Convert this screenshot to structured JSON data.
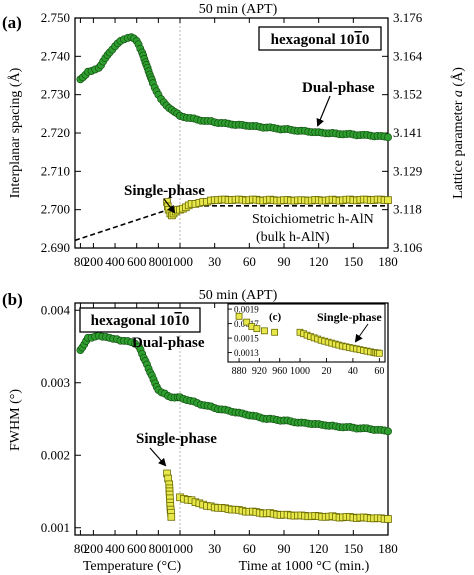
{
  "colors": {
    "green_fill": "#2e9e2e",
    "green_stroke": "#145214",
    "yellow_fill": "#e8e84a",
    "yellow_stroke": "#6b6b00",
    "axis": "#000000"
  },
  "chart_data": [
    {
      "type": "scatter",
      "panel_label": "(a)",
      "title_box": "hexagonal 10¯1¯0",
      "title_box_parts": [
        "hexagonal 10",
        "1",
        "0"
      ],
      "top_axis_label": "50 min (APT)",
      "ylabel": "Interplanar spacing (Å)",
      "y2label": "Lattice parameter a (Å)",
      "y2label_parts": [
        "Lattice parameter ",
        "a",
        " (Å)"
      ],
      "ylim": [
        2.69,
        2.75
      ],
      "yticks": [
        "2.690",
        "2.700",
        "2.710",
        "2.720",
        "2.730",
        "2.740",
        "2.750"
      ],
      "y2lim": [
        3.106,
        3.176
      ],
      "y2ticks": [
        "3.106",
        "3.118",
        "3.129",
        "3.141",
        "3.152",
        "3.164",
        "3.176"
      ],
      "x_temperature_ticks": [
        "80",
        "200",
        "400",
        "600",
        "800",
        "1000"
      ],
      "x_time_ticks": [
        "30",
        "60",
        "90",
        "120",
        "150",
        "180"
      ],
      "annotations": {
        "dual_phase": "Dual-phase",
        "single_phase": "Single-phase",
        "stoichiometric": "Stoichiometric h-AlN",
        "bulk": "(bulk h-AlN)"
      },
      "series": [
        {
          "name": "Dual-phase",
          "segment": "temperature",
          "x": [
            80,
            150,
            250,
            350,
            450,
            550,
            600,
            650,
            700,
            750,
            800,
            850,
            900,
            950,
            1000
          ],
          "y": [
            2.734,
            2.736,
            2.737,
            2.741,
            2.744,
            2.745,
            2.744,
            2.741,
            2.737,
            2.733,
            2.73,
            2.728,
            2.7265,
            2.7255,
            2.7245
          ]
        },
        {
          "name": "Dual-phase",
          "segment": "time",
          "x": [
            0,
            15,
            30,
            45,
            60,
            75,
            90,
            105,
            120,
            135,
            150,
            165,
            180
          ],
          "y": [
            2.7245,
            2.7235,
            2.7228,
            2.7222,
            2.7218,
            2.7214,
            2.721,
            2.7206,
            2.7202,
            2.7199,
            2.7196,
            2.7193,
            2.7189
          ]
        },
        {
          "name": "Single-phase",
          "segment": "temperature",
          "x": [
            880,
            895,
            910,
            925,
            940,
            960,
            980
          ],
          "y": [
            2.702,
            2.7,
            2.699,
            2.6985,
            2.699,
            2.6995,
            2.7
          ]
        },
        {
          "name": "Single-phase",
          "segment": "time",
          "x": [
            0,
            10,
            20,
            30,
            45,
            60,
            75,
            90,
            105,
            120,
            135,
            150,
            165,
            180
          ],
          "y": [
            2.7,
            2.7015,
            2.702,
            2.7025,
            2.7025,
            2.7025,
            2.7025,
            2.7025,
            2.7025,
            2.7025,
            2.7025,
            2.7025,
            2.7025,
            2.7025
          ]
        }
      ],
      "reference_line": {
        "name": "Stoichiometric h-AlN",
        "temperature_from": [
          30,
          2.692
        ],
        "temperature_to": [
          1000,
          2.701
        ],
        "time_level": 2.701
      }
    },
    {
      "type": "scatter",
      "panel_label": "(b)",
      "title_box": "hexagonal 10¯1¯0",
      "title_box_parts": [
        "hexagonal 10",
        "1",
        "0"
      ],
      "top_axis_label": "50 min (APT)",
      "ylabel": "FWHM (°)",
      "ylim": [
        0.0009,
        0.0041
      ],
      "yticks": [
        "0.001",
        "0.002",
        "0.003",
        "0.004"
      ],
      "ytick_values": [
        0.001,
        0.002,
        0.003,
        0.004
      ],
      "x_temperature_ticks": [
        "80",
        "200",
        "400",
        "600",
        "800",
        "1000"
      ],
      "x_time_ticks": [
        "30",
        "60",
        "90",
        "120",
        "150",
        "180"
      ],
      "xlabel_temperature": "Temperature (°C)",
      "xlabel_time": "Time at 1000 °C (min.)",
      "annotations": {
        "dual_phase": "Dual-phase",
        "single_phase": "Single-phase"
      },
      "series": [
        {
          "name": "Dual-phase",
          "segment": "temperature",
          "x": [
            80,
            150,
            250,
            350,
            450,
            550,
            620,
            680,
            740,
            800,
            860,
            920,
            980,
            1000
          ],
          "y": [
            0.00345,
            0.00362,
            0.00365,
            0.00362,
            0.00358,
            0.00356,
            0.0035,
            0.0033,
            0.0031,
            0.0029,
            0.00285,
            0.0028,
            0.0028,
            0.0028
          ]
        },
        {
          "name": "Dual-phase",
          "segment": "time",
          "x": [
            0,
            15,
            30,
            45,
            60,
            75,
            90,
            105,
            120,
            135,
            150,
            165,
            180
          ],
          "y": [
            0.0028,
            0.00272,
            0.00265,
            0.0026,
            0.00255,
            0.0025,
            0.00248,
            0.00245,
            0.00243,
            0.0024,
            0.00238,
            0.00236,
            0.00233
          ]
        },
        {
          "name": "Single-phase",
          "segment": "temperature",
          "x": [
            880,
            890,
            900,
            910,
            920
          ],
          "y": [
            0.00175,
            0.00168,
            0.0016,
            0.0013,
            0.00115
          ]
        },
        {
          "name": "Single-phase",
          "segment": "time",
          "x": [
            0,
            10,
            20,
            30,
            45,
            60,
            75,
            90,
            105,
            120,
            135,
            150,
            165,
            180
          ],
          "y": [
            0.00142,
            0.00138,
            0.00132,
            0.00128,
            0.00125,
            0.00122,
            0.0012,
            0.00118,
            0.00117,
            0.00116,
            0.00115,
            0.00114,
            0.00113,
            0.00112
          ]
        }
      ],
      "inset": {
        "label": "(c)",
        "annotation": "Single-phase",
        "yticks": [
          "0.0013",
          "0.0015",
          "0.0017",
          "0.0019"
        ],
        "ytick_values": [
          0.0013,
          0.0015,
          0.0017,
          0.0019
        ],
        "ylim": [
          0.00117,
          0.00197
        ],
        "x_temperature_ticks": [
          "880",
          "920",
          "960",
          "1000"
        ],
        "x_time_ticks": [
          "20",
          "40",
          "60"
        ],
        "temperature_points": {
          "x": [
            880,
            895,
            905,
            915,
            930,
            950
          ],
          "y": [
            0.0018,
            0.00172,
            0.00166,
            0.00163,
            0.0016,
            0.00158
          ]
        },
        "time_points": {
          "x": [
            0,
            8,
            16,
            24,
            32,
            40,
            48,
            56,
            60
          ],
          "y": [
            0.00158,
            0.00152,
            0.00147,
            0.00143,
            0.00139,
            0.00136,
            0.00133,
            0.0013,
            0.00129
          ]
        }
      }
    }
  ]
}
